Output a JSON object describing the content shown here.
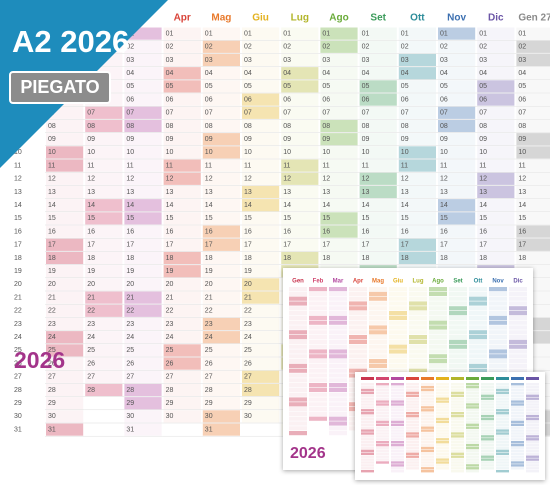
{
  "badge": {
    "title": "A2 2026",
    "label": "PIEGATO"
  },
  "main": {
    "months": [
      "Apr",
      "Mag",
      "Giu",
      "Lug",
      "Ago",
      "Set",
      "Ott",
      "Nov",
      "Dic",
      "Gen 27"
    ],
    "days": [
      "01",
      "02",
      "03",
      "04",
      "05",
      "06",
      "07",
      "08",
      "09",
      "10",
      "11",
      "12",
      "13",
      "14",
      "15",
      "16",
      "17",
      "18",
      "19",
      "20",
      "21",
      "22",
      "23",
      "24",
      "25",
      "26",
      "27",
      "28",
      "29",
      "30",
      "31"
    ],
    "year": "2026"
  },
  "inset": {
    "months": [
      "Gen",
      "Feb",
      "Mar",
      "Apr",
      "Mag",
      "Giu",
      "Lug",
      "Ago",
      "Set",
      "Ott",
      "Nov",
      "Dic"
    ],
    "year": "2026"
  }
}
